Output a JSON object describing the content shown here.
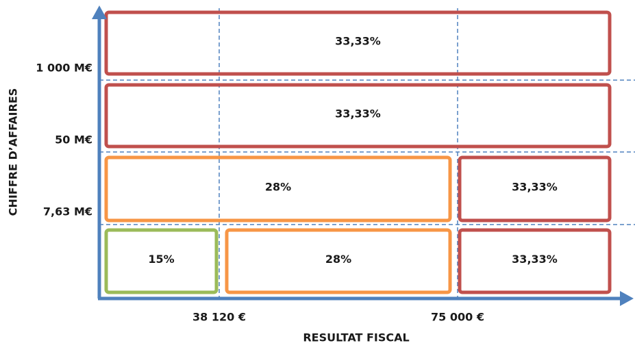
{
  "y_axis": {
    "title": "CHIFFRE D’AFFAIRES",
    "ticks": [
      "1 000 M€",
      "50 M€",
      "7,63 M€"
    ]
  },
  "x_axis": {
    "title": "RESULTAT FISCAL",
    "ticks": [
      "38 120 €",
      "75 000 €"
    ]
  },
  "cells": [
    {
      "label": "33,33%",
      "color": "#c0504d"
    },
    {
      "label": "33,33%",
      "color": "#c0504d"
    },
    {
      "label": "28%",
      "color": "#f79646"
    },
    {
      "label": "33,33%",
      "color": "#c0504d"
    },
    {
      "label": "15%",
      "color": "#9bbb59"
    },
    {
      "label": "28%",
      "color": "#f79646"
    },
    {
      "label": "33,33%",
      "color": "#c0504d"
    }
  ]
}
